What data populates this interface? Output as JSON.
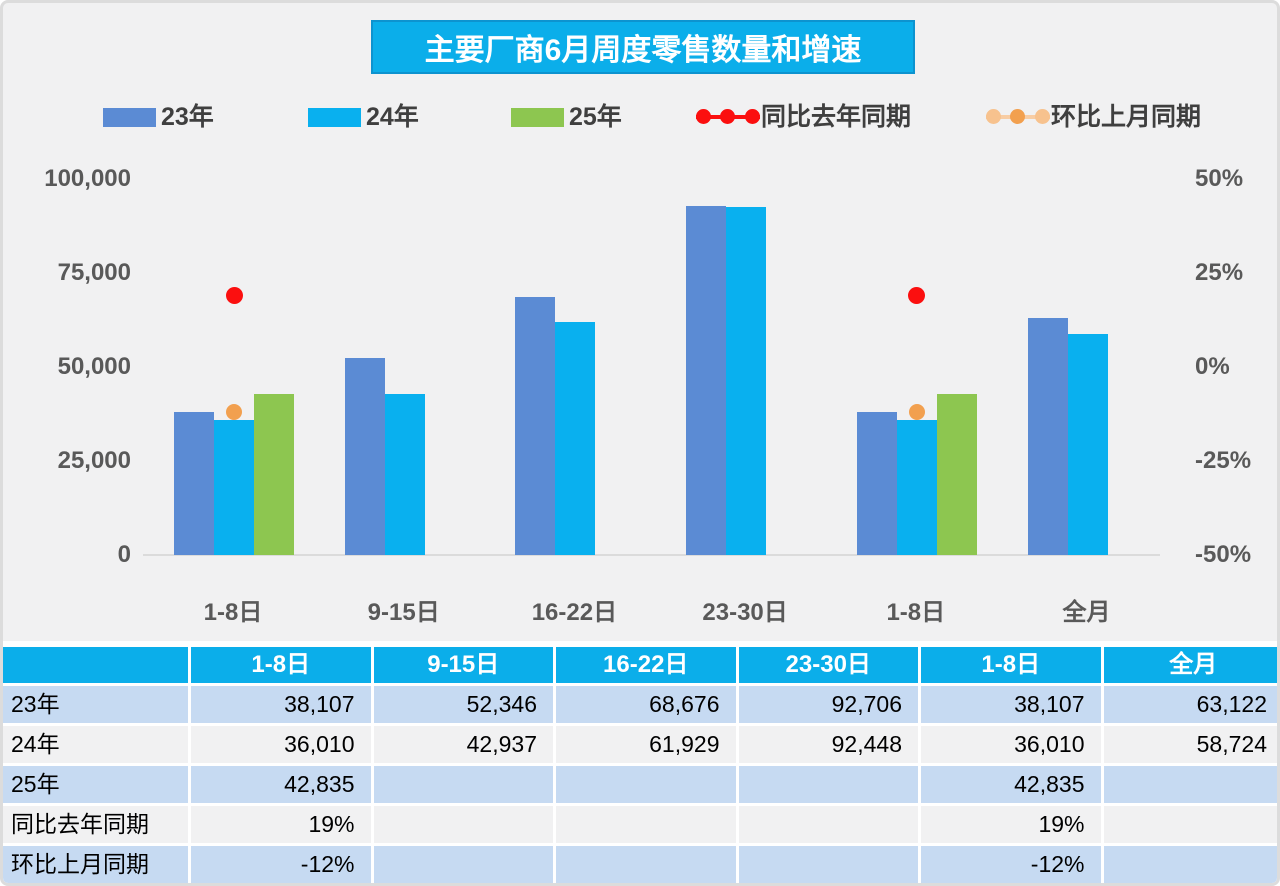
{
  "title": "主要厂商6月周度零售数量和增速",
  "legend": [
    {
      "label": "23年",
      "color": "#5B8BD4"
    },
    {
      "label": "24年",
      "color": "#09B0EF"
    },
    {
      "label": "25年",
      "color": "#8DC650"
    },
    {
      "label": "同比去年同期",
      "color": "#FB0F0F",
      "line_color": "#FB0F0F"
    },
    {
      "label": "环比上月同期",
      "color": "#F2A04F",
      "line_color": "#F8CDA4",
      "side_dot_color": "#F7C28E"
    }
  ],
  "chart_data": {
    "type": "bar",
    "title": "主要厂商6月周度零售数量和增速",
    "categories": [
      "1-8日",
      "9-15日",
      "16-22日",
      "23-30日",
      "1-8日",
      "全月"
    ],
    "series": [
      {
        "name": "23年",
        "color": "#5B8BD4",
        "values": [
          38107,
          52346,
          68676,
          92706,
          38107,
          63122
        ]
      },
      {
        "name": "24年",
        "color": "#09B0EF",
        "values": [
          36010,
          42937,
          61929,
          92448,
          36010,
          58724
        ]
      },
      {
        "name": "25年",
        "color": "#8DC650",
        "values": [
          42835,
          null,
          null,
          null,
          42835,
          null
        ]
      }
    ],
    "point_series": [
      {
        "name": "同比去年同期",
        "type": "scatter",
        "color": "#FB0F0F",
        "values_pct": [
          19,
          null,
          null,
          null,
          19,
          null
        ]
      },
      {
        "name": "环比上月同期",
        "type": "scatter",
        "color": "#F2A04F",
        "values_pct": [
          -12,
          null,
          null,
          null,
          -12,
          null
        ]
      }
    ],
    "left_axis": {
      "ticks": [
        "100,000",
        "75,000",
        "50,000",
        "25,000",
        "0"
      ],
      "min": 0,
      "max": 100000,
      "grid": false
    },
    "right_axis": {
      "ticks": [
        "50%",
        "25%",
        "0%",
        "-25%",
        "-50%"
      ],
      "min": -50,
      "max": 50
    },
    "legend_position": "top"
  },
  "table": {
    "columns": [
      "1-8日",
      "9-15日",
      "16-22日",
      "23-30日",
      "1-8日",
      "全月"
    ],
    "rows": [
      {
        "label": "23年",
        "cells": [
          "38,107",
          "52,346",
          "68,676",
          "92,706",
          "38,107",
          "63,122"
        ]
      },
      {
        "label": "24年",
        "cells": [
          "36,010",
          "42,937",
          "61,929",
          "92,448",
          "36,010",
          "58,724"
        ]
      },
      {
        "label": "25年",
        "cells": [
          "42,835",
          "",
          "",
          "",
          "42,835",
          ""
        ]
      },
      {
        "label": "同比去年同期",
        "cells": [
          "19%",
          "",
          "",
          "",
          "19%",
          ""
        ]
      },
      {
        "label": "环比上月同期",
        "cells": [
          "-12%",
          "",
          "",
          "",
          "-12%",
          ""
        ]
      }
    ]
  },
  "colors": {
    "accent_cyan": "#0BAEEA",
    "bar_blue": "#5B8BD4",
    "bar_cyan": "#09B0EF",
    "bar_green": "#8DC650",
    "dot_red": "#FB0F0F",
    "dot_orange": "#F2A04F",
    "row_light_blue": "#C6DAF2",
    "row_gray": "#F1F1F2",
    "axis_text": "#595959",
    "page_bg": "#F1F1F2"
  }
}
